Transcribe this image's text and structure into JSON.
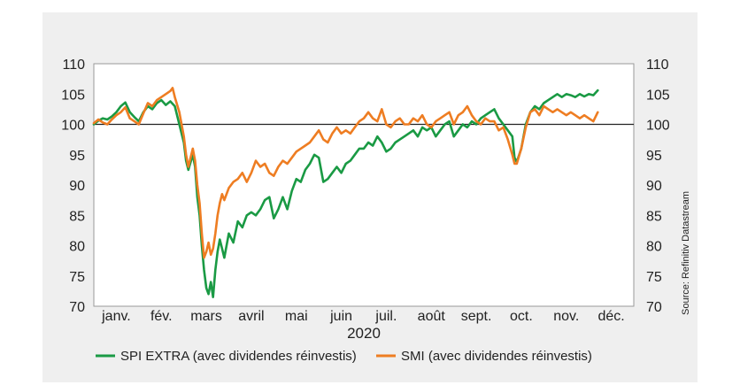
{
  "chart_data": {
    "type": "line",
    "xlabel": "2020",
    "months": [
      "janv.",
      "fév.",
      "mars",
      "avril",
      "mai",
      "juin",
      "juil.",
      "août",
      "sept.",
      "oct.",
      "nov.",
      "déc."
    ],
    "ylim": [
      70,
      110
    ],
    "yticks": [
      70,
      75,
      80,
      85,
      90,
      95,
      100,
      105,
      110
    ],
    "reference_line": 100,
    "source": "Source: Refinitiv Datastream",
    "colors": {
      "spi": "#1a9a44",
      "smi": "#ee7d22",
      "reference": "#222222"
    },
    "series": [
      {
        "name": "SPI EXTRA (avec dividendes réinvestis)",
        "color": "#1a9a44",
        "points": [
          [
            0.0,
            100.0
          ],
          [
            0.1,
            100.6
          ],
          [
            0.2,
            101.0
          ],
          [
            0.3,
            100.8
          ],
          [
            0.4,
            101.3
          ],
          [
            0.5,
            102.0
          ],
          [
            0.6,
            103.0
          ],
          [
            0.7,
            103.6
          ],
          [
            0.8,
            102.0
          ],
          [
            0.9,
            101.2
          ],
          [
            1.0,
            100.5
          ],
          [
            1.1,
            102.0
          ],
          [
            1.2,
            103.0
          ],
          [
            1.3,
            102.5
          ],
          [
            1.4,
            103.5
          ],
          [
            1.5,
            104.0
          ],
          [
            1.6,
            103.2
          ],
          [
            1.7,
            103.8
          ],
          [
            1.8,
            103.0
          ],
          [
            1.9,
            100.0
          ],
          [
            2.0,
            97.0
          ],
          [
            2.05,
            94.0
          ],
          [
            2.1,
            92.5
          ],
          [
            2.2,
            95.0
          ],
          [
            2.25,
            93.0
          ],
          [
            2.3,
            88.0
          ],
          [
            2.35,
            85.0
          ],
          [
            2.4,
            80.0
          ],
          [
            2.45,
            76.0
          ],
          [
            2.5,
            73.0
          ],
          [
            2.55,
            72.0
          ],
          [
            2.6,
            74.0
          ],
          [
            2.65,
            71.5
          ],
          [
            2.7,
            76.0
          ],
          [
            2.75,
            79.0
          ],
          [
            2.8,
            81.0
          ],
          [
            2.85,
            79.5
          ],
          [
            2.9,
            78.0
          ],
          [
            3.0,
            82.0
          ],
          [
            3.1,
            80.5
          ],
          [
            3.2,
            84.0
          ],
          [
            3.3,
            83.0
          ],
          [
            3.4,
            85.0
          ],
          [
            3.5,
            85.5
          ],
          [
            3.6,
            85.0
          ],
          [
            3.7,
            86.0
          ],
          [
            3.8,
            87.5
          ],
          [
            3.9,
            88.0
          ],
          [
            4.0,
            84.5
          ],
          [
            4.1,
            86.0
          ],
          [
            4.2,
            88.0
          ],
          [
            4.3,
            86.0
          ],
          [
            4.4,
            89.0
          ],
          [
            4.5,
            91.0
          ],
          [
            4.6,
            90.5
          ],
          [
            4.7,
            92.5
          ],
          [
            4.8,
            93.5
          ],
          [
            4.9,
            95.0
          ],
          [
            5.0,
            94.5
          ],
          [
            5.1,
            90.5
          ],
          [
            5.2,
            91.0
          ],
          [
            5.3,
            92.0
          ],
          [
            5.4,
            93.0
          ],
          [
            5.5,
            92.0
          ],
          [
            5.6,
            93.5
          ],
          [
            5.7,
            94.0
          ],
          [
            5.8,
            95.0
          ],
          [
            5.9,
            96.0
          ],
          [
            6.0,
            96.0
          ],
          [
            6.1,
            97.0
          ],
          [
            6.2,
            96.5
          ],
          [
            6.3,
            98.0
          ],
          [
            6.4,
            97.0
          ],
          [
            6.5,
            95.5
          ],
          [
            6.6,
            96.0
          ],
          [
            6.7,
            97.0
          ],
          [
            6.8,
            97.5
          ],
          [
            6.9,
            98.0
          ],
          [
            7.0,
            98.5
          ],
          [
            7.1,
            99.0
          ],
          [
            7.2,
            98.0
          ],
          [
            7.3,
            99.5
          ],
          [
            7.4,
            99.0
          ],
          [
            7.5,
            99.5
          ],
          [
            7.6,
            98.0
          ],
          [
            7.7,
            99.0
          ],
          [
            7.8,
            100.0
          ],
          [
            7.9,
            100.5
          ],
          [
            8.0,
            98.0
          ],
          [
            8.1,
            99.0
          ],
          [
            8.2,
            100.0
          ],
          [
            8.3,
            99.5
          ],
          [
            8.4,
            100.5
          ],
          [
            8.5,
            100.0
          ],
          [
            8.6,
            101.0
          ],
          [
            8.7,
            101.5
          ],
          [
            8.8,
            102.0
          ],
          [
            8.9,
            102.5
          ],
          [
            9.0,
            101.0
          ],
          [
            9.1,
            100.0
          ],
          [
            9.2,
            99.0
          ],
          [
            9.3,
            98.0
          ],
          [
            9.35,
            94.5
          ],
          [
            9.4,
            93.8
          ],
          [
            9.5,
            96.0
          ],
          [
            9.6,
            100.0
          ],
          [
            9.7,
            102.0
          ],
          [
            9.8,
            103.0
          ],
          [
            9.9,
            102.5
          ],
          [
            10.0,
            103.5
          ],
          [
            10.1,
            104.0
          ],
          [
            10.2,
            104.5
          ],
          [
            10.3,
            105.0
          ],
          [
            10.4,
            104.5
          ],
          [
            10.5,
            105.0
          ],
          [
            10.6,
            104.8
          ],
          [
            10.7,
            104.5
          ],
          [
            10.8,
            105.0
          ],
          [
            10.9,
            104.6
          ],
          [
            11.0,
            105.0
          ],
          [
            11.1,
            104.8
          ],
          [
            11.2,
            105.6
          ]
        ]
      },
      {
        "name": "SMI (avec dividendes réinvestis)",
        "color": "#ee7d22",
        "points": [
          [
            0.0,
            100.2
          ],
          [
            0.1,
            100.8
          ],
          [
            0.2,
            100.3
          ],
          [
            0.3,
            100.0
          ],
          [
            0.4,
            100.8
          ],
          [
            0.5,
            101.5
          ],
          [
            0.6,
            102.0
          ],
          [
            0.7,
            102.8
          ],
          [
            0.8,
            101.0
          ],
          [
            0.9,
            100.5
          ],
          [
            1.0,
            100.0
          ],
          [
            1.1,
            101.8
          ],
          [
            1.2,
            103.5
          ],
          [
            1.3,
            103.0
          ],
          [
            1.4,
            104.0
          ],
          [
            1.5,
            104.5
          ],
          [
            1.6,
            105.0
          ],
          [
            1.7,
            105.5
          ],
          [
            1.75,
            106.0
          ],
          [
            1.8,
            104.5
          ],
          [
            1.9,
            102.0
          ],
          [
            2.0,
            98.0
          ],
          [
            2.05,
            95.0
          ],
          [
            2.1,
            93.0
          ],
          [
            2.2,
            96.0
          ],
          [
            2.25,
            94.0
          ],
          [
            2.3,
            90.0
          ],
          [
            2.35,
            87.0
          ],
          [
            2.4,
            82.0
          ],
          [
            2.45,
            78.0
          ],
          [
            2.5,
            79.0
          ],
          [
            2.55,
            80.5
          ],
          [
            2.6,
            78.5
          ],
          [
            2.65,
            79.5
          ],
          [
            2.7,
            82.0
          ],
          [
            2.75,
            85.0
          ],
          [
            2.8,
            87.0
          ],
          [
            2.85,
            88.5
          ],
          [
            2.9,
            87.5
          ],
          [
            3.0,
            89.5
          ],
          [
            3.1,
            90.5
          ],
          [
            3.2,
            91.0
          ],
          [
            3.3,
            92.0
          ],
          [
            3.4,
            90.5
          ],
          [
            3.5,
            92.0
          ],
          [
            3.6,
            94.0
          ],
          [
            3.7,
            93.0
          ],
          [
            3.8,
            93.5
          ],
          [
            3.9,
            92.0
          ],
          [
            4.0,
            91.5
          ],
          [
            4.1,
            93.0
          ],
          [
            4.2,
            94.0
          ],
          [
            4.3,
            93.5
          ],
          [
            4.4,
            94.5
          ],
          [
            4.5,
            95.5
          ],
          [
            4.6,
            96.0
          ],
          [
            4.7,
            96.5
          ],
          [
            4.8,
            97.0
          ],
          [
            4.9,
            98.0
          ],
          [
            5.0,
            99.0
          ],
          [
            5.1,
            97.5
          ],
          [
            5.2,
            97.0
          ],
          [
            5.3,
            98.5
          ],
          [
            5.4,
            99.5
          ],
          [
            5.5,
            98.5
          ],
          [
            5.6,
            99.0
          ],
          [
            5.7,
            98.5
          ],
          [
            5.8,
            99.5
          ],
          [
            5.9,
            100.5
          ],
          [
            6.0,
            101.0
          ],
          [
            6.1,
            102.0
          ],
          [
            6.2,
            101.0
          ],
          [
            6.3,
            100.5
          ],
          [
            6.4,
            102.5
          ],
          [
            6.5,
            100.0
          ],
          [
            6.6,
            99.5
          ],
          [
            6.7,
            100.5
          ],
          [
            6.8,
            101.0
          ],
          [
            6.9,
            100.0
          ],
          [
            7.0,
            100.0
          ],
          [
            7.1,
            101.0
          ],
          [
            7.2,
            100.5
          ],
          [
            7.3,
            101.5
          ],
          [
            7.4,
            100.0
          ],
          [
            7.5,
            99.5
          ],
          [
            7.6,
            100.5
          ],
          [
            7.7,
            101.0
          ],
          [
            7.8,
            101.5
          ],
          [
            7.9,
            102.0
          ],
          [
            8.0,
            100.0
          ],
          [
            8.1,
            101.5
          ],
          [
            8.2,
            102.0
          ],
          [
            8.3,
            103.0
          ],
          [
            8.4,
            101.5
          ],
          [
            8.5,
            100.5
          ],
          [
            8.6,
            100.0
          ],
          [
            8.7,
            101.0
          ],
          [
            8.8,
            100.5
          ],
          [
            8.9,
            100.5
          ],
          [
            9.0,
            99.0
          ],
          [
            9.1,
            99.5
          ],
          [
            9.2,
            97.5
          ],
          [
            9.3,
            95.0
          ],
          [
            9.35,
            93.5
          ],
          [
            9.4,
            93.5
          ],
          [
            9.5,
            96.0
          ],
          [
            9.6,
            99.5
          ],
          [
            9.7,
            102.0
          ],
          [
            9.8,
            102.5
          ],
          [
            9.9,
            101.5
          ],
          [
            10.0,
            103.0
          ],
          [
            10.1,
            102.5
          ],
          [
            10.2,
            102.0
          ],
          [
            10.3,
            102.5
          ],
          [
            10.4,
            102.0
          ],
          [
            10.5,
            101.5
          ],
          [
            10.6,
            102.0
          ],
          [
            10.7,
            101.5
          ],
          [
            10.8,
            101.0
          ],
          [
            10.9,
            101.5
          ],
          [
            11.0,
            101.0
          ],
          [
            11.1,
            100.5
          ],
          [
            11.2,
            102.0
          ]
        ]
      }
    ]
  }
}
